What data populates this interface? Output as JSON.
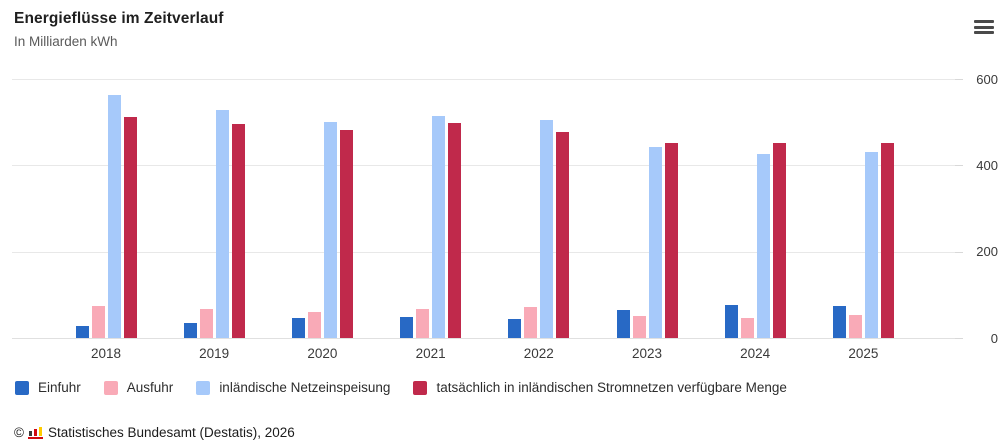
{
  "header": {
    "title": "Energieflüsse im Zeitverlauf",
    "subtitle": "In Milliarden kWh"
  },
  "chart_data": {
    "type": "bar",
    "title": "Energieflüsse im Zeitverlauf",
    "unit_label": "In Milliarden kWh",
    "categories": [
      "2018",
      "2019",
      "2020",
      "2021",
      "2022",
      "2023",
      "2024",
      "2025"
    ],
    "series": [
      {
        "name": "Einfuhr",
        "color": "#2869c5",
        "values": [
          28,
          35,
          46,
          49,
          44,
          64,
          77,
          74
        ]
      },
      {
        "name": "Ausfuhr",
        "color": "#f9aab7",
        "values": [
          74,
          67,
          60,
          67,
          72,
          52,
          46,
          53
        ]
      },
      {
        "name": "inländische Netzeinspeisung",
        "color": "#a6c9fa",
        "values": [
          563,
          528,
          500,
          514,
          505,
          443,
          426,
          431
        ]
      },
      {
        "name": "tatsächlich in inländischen Stromnetzen verfügbare Menge",
        "color": "#c0294b",
        "values": [
          512,
          497,
          483,
          498,
          478,
          452,
          452,
          452
        ]
      }
    ],
    "ylim": [
      0,
      600
    ],
    "yticks": [
      0,
      200,
      400,
      600
    ],
    "grid": true,
    "y_axis_side": "right",
    "legend_position": "bottom"
  },
  "footer": {
    "copyright": "©",
    "source": "Statistisches Bundesamt (Destatis), 2026",
    "logo_colors": {
      "bar1": "#3b3b3a",
      "bar2": "#d10a10",
      "bar3": "#ffcc00",
      "baseline": "#d10a10"
    }
  }
}
